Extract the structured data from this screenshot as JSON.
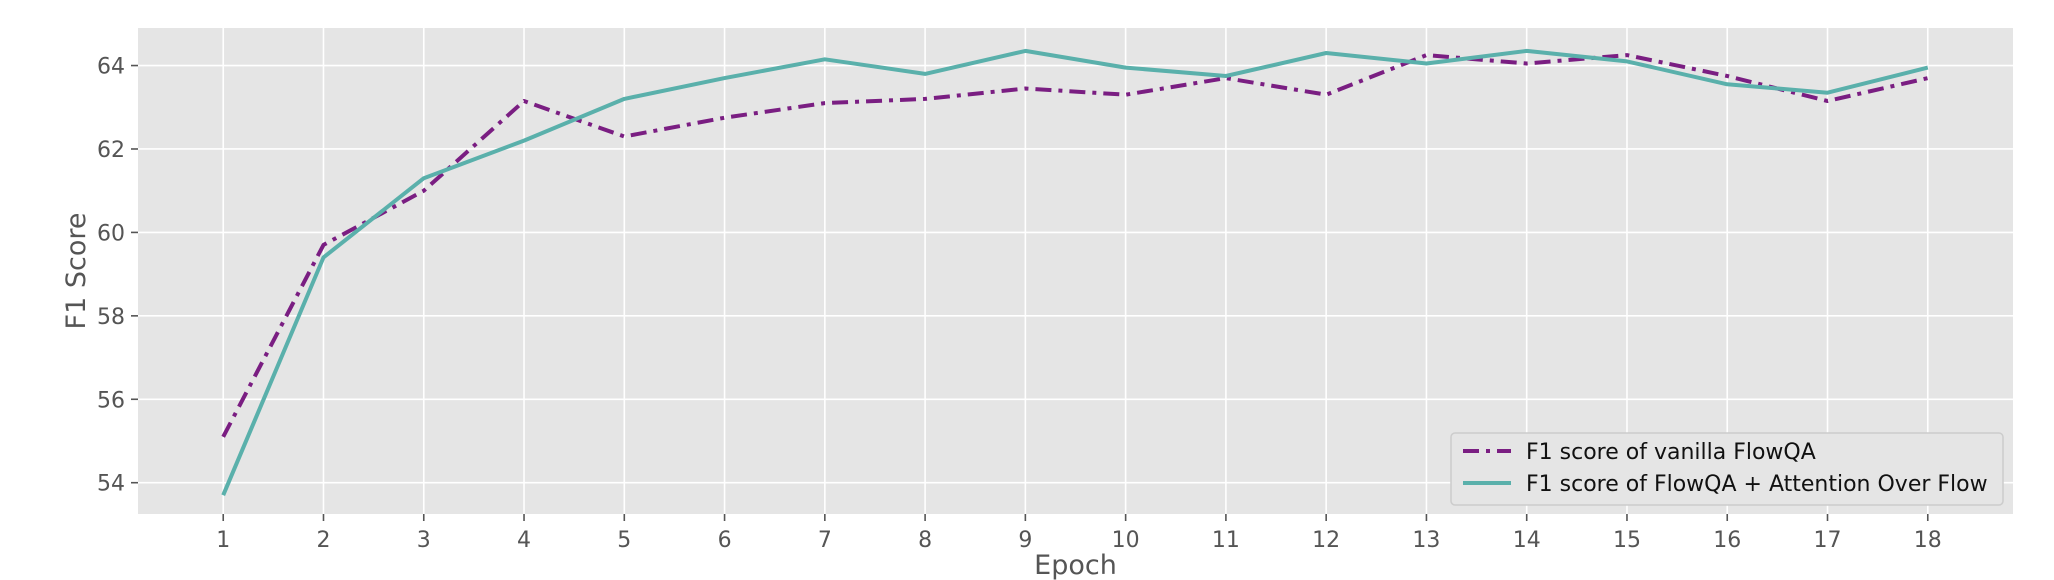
{
  "chart_data": {
    "type": "line",
    "title": "",
    "xlabel": "Epoch",
    "ylabel": "F1 Score",
    "x": [
      1,
      2,
      3,
      4,
      5,
      6,
      7,
      8,
      9,
      10,
      11,
      12,
      13,
      14,
      15,
      16,
      17,
      18
    ],
    "xlim": [
      0.15,
      18.85
    ],
    "ylim": [
      53.25,
      64.9
    ],
    "yticks": [
      54,
      56,
      58,
      60,
      62,
      64
    ],
    "grid": true,
    "legend_position": "lower-right",
    "series": [
      {
        "name": "F1 score of vanilla FlowQA",
        "color": "#7a1e82",
        "style": "dashdot",
        "values": [
          55.1,
          59.7,
          61.0,
          63.15,
          62.3,
          62.75,
          63.1,
          63.2,
          63.45,
          63.3,
          63.7,
          63.3,
          64.25,
          64.05,
          64.25,
          63.75,
          63.15,
          63.7
        ]
      },
      {
        "name": "F1 score of FlowQA + Attention Over Flow",
        "color": "#5ab0ab",
        "style": "solid",
        "values": [
          53.7,
          59.4,
          61.3,
          62.2,
          63.2,
          63.7,
          64.15,
          63.8,
          64.35,
          63.95,
          63.75,
          64.3,
          64.05,
          64.35,
          64.1,
          63.55,
          63.35,
          63.95
        ]
      }
    ]
  }
}
